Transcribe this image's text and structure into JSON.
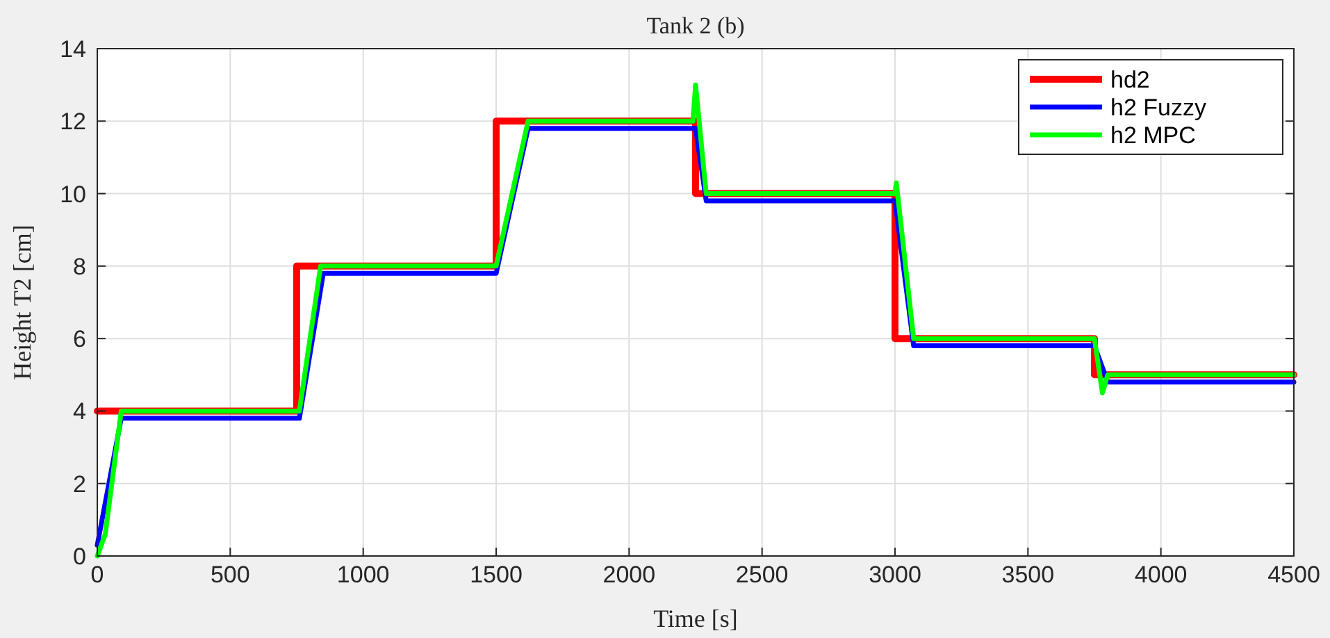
{
  "chart_data": {
    "type": "line",
    "title": "Tank 2 (b)",
    "xlabel": "Time [s]",
    "ylabel": "Height T2 [cm]",
    "xlim": [
      0,
      4500
    ],
    "xticks": [
      0,
      500,
      1000,
      1500,
      2000,
      2500,
      3000,
      3500,
      4000,
      4500
    ],
    "ylim": [
      0,
      14
    ],
    "yticks": [
      0,
      2,
      4,
      6,
      8,
      10,
      12,
      14
    ],
    "grid": true,
    "legend": "top right",
    "line_style": "solid",
    "series": [
      {
        "name": "hd2",
        "color": "#ff0000",
        "x": [
          0,
          750,
          750,
          1500,
          1500,
          2250,
          2250,
          3000,
          3000,
          3750,
          3750,
          4500
        ],
        "values": [
          4,
          4,
          8,
          8,
          12,
          12,
          10,
          10,
          6,
          6,
          5,
          5
        ]
      },
      {
        "name": "h2 Fuzzy",
        "color": "#0000ff",
        "x": [
          0,
          90,
          760,
          850,
          1500,
          1620,
          2250,
          2290,
          3000,
          3070,
          3750,
          3800,
          4500
        ],
        "values": [
          0.3,
          3.8,
          3.8,
          7.8,
          7.8,
          11.8,
          11.8,
          9.8,
          9.8,
          5.8,
          5.8,
          4.8,
          4.8
        ]
      },
      {
        "name": "h2 MPC",
        "color": "#00ff00",
        "x": [
          0,
          30,
          90,
          760,
          840,
          1500,
          1620,
          2240,
          2250,
          2290,
          3000,
          3005,
          3070,
          3750,
          3780,
          3800,
          4500
        ],
        "values": [
          0,
          0.6,
          4,
          4,
          8,
          8,
          12,
          12,
          13,
          10,
          10,
          10.3,
          6,
          6,
          4.5,
          5,
          5
        ]
      }
    ]
  }
}
